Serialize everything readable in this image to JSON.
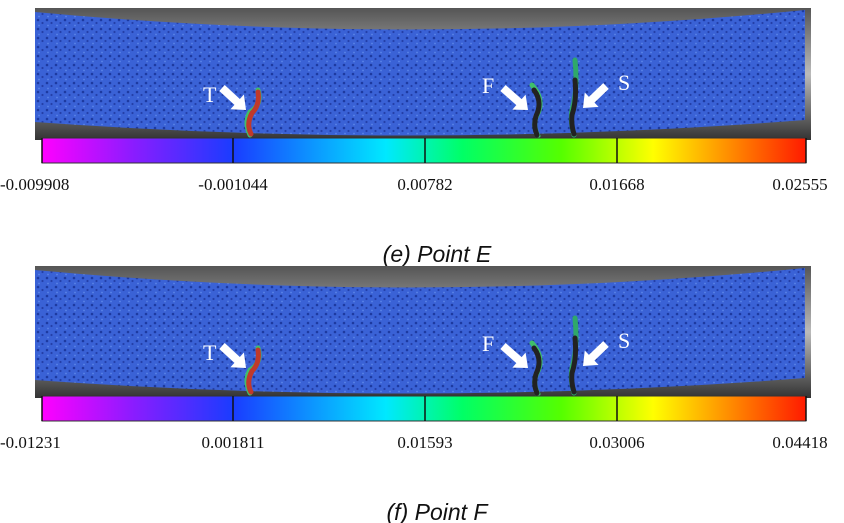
{
  "panels": [
    {
      "markers": [
        "T",
        "F",
        "S"
      ],
      "colorbar_labels": [
        "-0.009908",
        "-0.001044",
        "0.00782",
        "0.01668",
        "0.02555"
      ],
      "caption": "(e) Point E"
    },
    {
      "markers": [
        "T",
        "F",
        "S"
      ],
      "colorbar_labels": [
        "-0.01231",
        "0.001811",
        "0.01593",
        "0.03006",
        "0.04418"
      ],
      "caption": "(f) Point F"
    }
  ]
}
